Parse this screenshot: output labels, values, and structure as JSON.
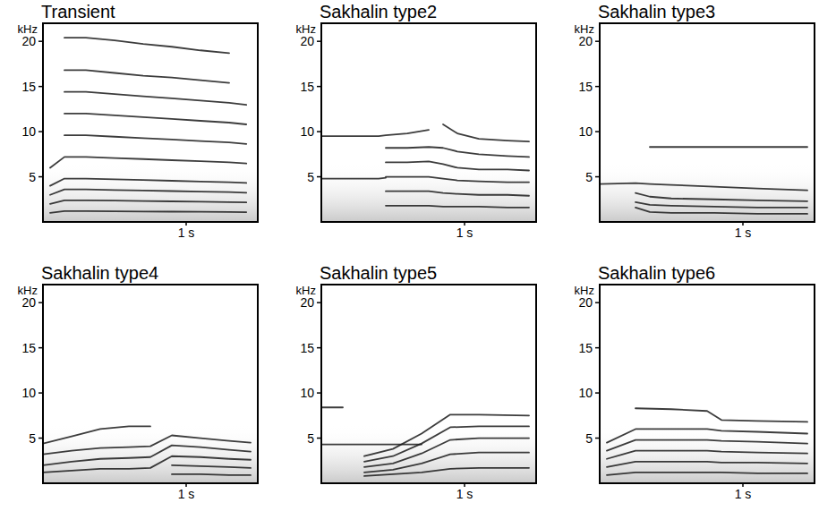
{
  "chart_data": [
    {
      "type": "line",
      "title": "Transient",
      "y_label": "kHz",
      "color": "#1a1a1a",
      "xlim": [
        0,
        1.5
      ],
      "ylim": [
        0,
        22
      ],
      "xticks": [
        {
          "value": 1,
          "label": "1 s"
        }
      ],
      "yticks": [
        5,
        10,
        15,
        20
      ],
      "x": [
        0.05,
        0.15,
        0.3,
        0.5,
        0.7,
        0.9,
        1.1,
        1.3,
        1.42
      ],
      "series": [
        {
          "values": [
            1.0,
            1.2,
            1.2,
            1.18,
            1.16,
            1.14,
            1.12,
            1.1,
            1.08
          ]
        },
        {
          "values": [
            2.0,
            2.4,
            2.4,
            2.36,
            2.32,
            2.28,
            2.24,
            2.2,
            2.16
          ]
        },
        {
          "values": [
            3.0,
            3.6,
            3.6,
            3.54,
            3.48,
            3.42,
            3.36,
            3.3,
            3.24
          ]
        },
        {
          "values": [
            4.0,
            4.8,
            4.8,
            4.72,
            4.64,
            4.56,
            4.48,
            4.4,
            4.32
          ]
        },
        {
          "values": [
            6.0,
            7.2,
            7.2,
            7.08,
            6.96,
            6.84,
            6.72,
            6.6,
            6.48
          ]
        },
        {
          "values": [
            null,
            9.6,
            9.6,
            9.44,
            9.28,
            9.12,
            8.96,
            8.8,
            8.64
          ]
        },
        {
          "values": [
            null,
            12.0,
            12.0,
            11.8,
            11.6,
            11.4,
            11.2,
            11.0,
            10.8
          ]
        },
        {
          "values": [
            null,
            14.4,
            14.4,
            14.16,
            13.92,
            13.68,
            13.44,
            13.2,
            12.96
          ]
        },
        {
          "values": [
            null,
            16.8,
            16.8,
            16.5,
            16.2,
            16.0,
            15.7,
            15.4,
            null
          ]
        },
        {
          "values": [
            null,
            20.4,
            20.4,
            20.1,
            19.7,
            19.4,
            19.0,
            18.7,
            null
          ]
        }
      ]
    },
    {
      "type": "line",
      "title": "Sakhalin type2",
      "y_label": "kHz",
      "color": "#1a1a1a",
      "xlim": [
        0,
        1.5
      ],
      "ylim": [
        0,
        22
      ],
      "xticks": [
        {
          "value": 1,
          "label": "1 s"
        }
      ],
      "yticks": [
        5,
        10,
        15,
        20
      ],
      "x": [
        0,
        0.2,
        0.4,
        0.45,
        0.6,
        0.75,
        0.85,
        0.95,
        1.1,
        1.3,
        1.45
      ],
      "series": [
        {
          "values": [
            9.5,
            9.5,
            9.5,
            9.6,
            9.8,
            10.2,
            null,
            null,
            null,
            null,
            null
          ]
        },
        {
          "values": [
            4.8,
            4.8,
            4.8,
            4.9,
            null,
            null,
            null,
            null,
            null,
            null,
            null
          ]
        },
        {
          "values": [
            null,
            null,
            null,
            null,
            null,
            null,
            10.8,
            9.8,
            9.2,
            9.0,
            8.9
          ]
        },
        {
          "values": [
            null,
            null,
            null,
            8.2,
            8.2,
            8.3,
            8.2,
            7.8,
            7.5,
            7.3,
            7.2
          ]
        },
        {
          "values": [
            null,
            null,
            null,
            6.6,
            6.6,
            6.7,
            6.4,
            6.0,
            5.8,
            5.8,
            5.7
          ]
        },
        {
          "values": [
            null,
            null,
            null,
            5.0,
            5.0,
            5.0,
            4.8,
            4.6,
            4.5,
            4.4,
            4.4
          ]
        },
        {
          "values": [
            null,
            null,
            null,
            3.4,
            3.4,
            3.4,
            3.2,
            3.1,
            3.0,
            3.0,
            2.9
          ]
        },
        {
          "values": [
            null,
            null,
            null,
            1.8,
            1.8,
            1.8,
            1.7,
            1.7,
            1.7,
            1.6,
            1.6
          ]
        }
      ]
    },
    {
      "type": "line",
      "title": "Sakhalin type3",
      "y_label": "kHz",
      "color": "#1a1a1a",
      "xlim": [
        0,
        1.5
      ],
      "ylim": [
        0,
        22
      ],
      "xticks": [
        {
          "value": 1,
          "label": "1 s"
        }
      ],
      "yticks": [
        5,
        10,
        15,
        20
      ],
      "x": [
        0,
        0.25,
        0.35,
        0.5,
        0.8,
        1.1,
        1.45
      ],
      "series": [
        {
          "values": [
            null,
            null,
            8.3,
            8.3,
            8.3,
            8.3,
            8.3
          ]
        },
        {
          "values": [
            4.2,
            4.3,
            4.2,
            4.1,
            3.9,
            3.7,
            3.5
          ]
        },
        {
          "values": [
            null,
            3.2,
            2.8,
            2.6,
            2.5,
            2.4,
            2.3
          ]
        },
        {
          "values": [
            null,
            2.2,
            1.9,
            1.8,
            1.7,
            1.6,
            1.6
          ]
        },
        {
          "values": [
            null,
            1.6,
            1.1,
            1.0,
            1.0,
            0.9,
            0.9
          ]
        }
      ]
    },
    {
      "type": "line",
      "title": "Sakhalin type4",
      "y_label": "kHz",
      "color": "#1a1a1a",
      "xlim": [
        0,
        1.5
      ],
      "ylim": [
        0,
        22
      ],
      "xticks": [
        {
          "value": 1,
          "label": "1 s"
        }
      ],
      "yticks": [
        5,
        10,
        15,
        20
      ],
      "x": [
        0,
        0.2,
        0.4,
        0.6,
        0.75,
        0.9,
        1.1,
        1.3,
        1.45
      ],
      "series": [
        {
          "values": [
            4.4,
            5.2,
            6.0,
            6.3,
            6.3,
            null,
            null,
            null,
            null
          ]
        },
        {
          "values": [
            3.2,
            3.6,
            3.9,
            4.0,
            4.1,
            5.3,
            5.0,
            4.7,
            4.5
          ]
        },
        {
          "values": [
            2.0,
            2.4,
            2.7,
            2.8,
            2.9,
            4.2,
            4.0,
            3.7,
            3.5
          ]
        },
        {
          "values": [
            1.2,
            1.4,
            1.6,
            1.6,
            1.7,
            3.0,
            2.9,
            2.7,
            2.6
          ]
        },
        {
          "values": [
            null,
            null,
            null,
            null,
            null,
            2.0,
            1.9,
            1.8,
            1.7
          ]
        },
        {
          "values": [
            null,
            null,
            null,
            null,
            null,
            1.0,
            1.0,
            0.9,
            0.9
          ]
        }
      ]
    },
    {
      "type": "line",
      "title": "Sakhalin type5",
      "y_label": "kHz",
      "color": "#1a1a1a",
      "xlim": [
        0,
        1.5
      ],
      "ylim": [
        0,
        22
      ],
      "xticks": [
        {
          "value": 1,
          "label": "1 s"
        }
      ],
      "yticks": [
        5,
        10,
        15,
        20
      ],
      "x": [
        0,
        0.15,
        0.3,
        0.5,
        0.7,
        0.9,
        1.1,
        1.45
      ],
      "series": [
        {
          "values": [
            8.4,
            8.4,
            null,
            null,
            null,
            null,
            null,
            null
          ]
        },
        {
          "values": [
            4.3,
            4.3,
            4.3,
            4.3,
            4.3,
            null,
            null,
            null
          ]
        },
        {
          "values": [
            null,
            null,
            3.0,
            3.8,
            5.5,
            7.6,
            7.6,
            7.5
          ]
        },
        {
          "values": [
            null,
            null,
            2.4,
            3.0,
            4.4,
            6.2,
            6.3,
            6.3
          ]
        },
        {
          "values": [
            null,
            null,
            1.8,
            2.2,
            3.3,
            4.8,
            5.0,
            5.0
          ]
        },
        {
          "values": [
            null,
            null,
            1.2,
            1.5,
            2.2,
            3.2,
            3.4,
            3.4
          ]
        },
        {
          "values": [
            null,
            null,
            0.8,
            1.0,
            1.2,
            1.6,
            1.7,
            1.7
          ]
        }
      ]
    },
    {
      "type": "line",
      "title": "Sakhalin type6",
      "y_label": "kHz",
      "color": "#1a1a1a",
      "xlim": [
        0,
        1.5
      ],
      "ylim": [
        0,
        22
      ],
      "xticks": [
        {
          "value": 1,
          "label": "1 s"
        }
      ],
      "yticks": [
        5,
        10,
        15,
        20
      ],
      "x": [
        0.05,
        0.25,
        0.5,
        0.75,
        0.85,
        1.1,
        1.45
      ],
      "series": [
        {
          "values": [
            null,
            8.3,
            8.2,
            8.0,
            7.0,
            6.9,
            6.8
          ]
        },
        {
          "values": [
            4.5,
            6.0,
            6.0,
            6.0,
            5.8,
            5.7,
            5.5
          ]
        },
        {
          "values": [
            3.6,
            4.8,
            4.8,
            4.8,
            4.7,
            4.6,
            4.4
          ]
        },
        {
          "values": [
            2.7,
            3.6,
            3.6,
            3.6,
            3.5,
            3.4,
            3.3
          ]
        },
        {
          "values": [
            1.8,
            2.4,
            2.4,
            2.4,
            2.3,
            2.3,
            2.2
          ]
        },
        {
          "values": [
            0.9,
            1.2,
            1.2,
            1.2,
            1.2,
            1.1,
            1.1
          ]
        }
      ]
    }
  ]
}
